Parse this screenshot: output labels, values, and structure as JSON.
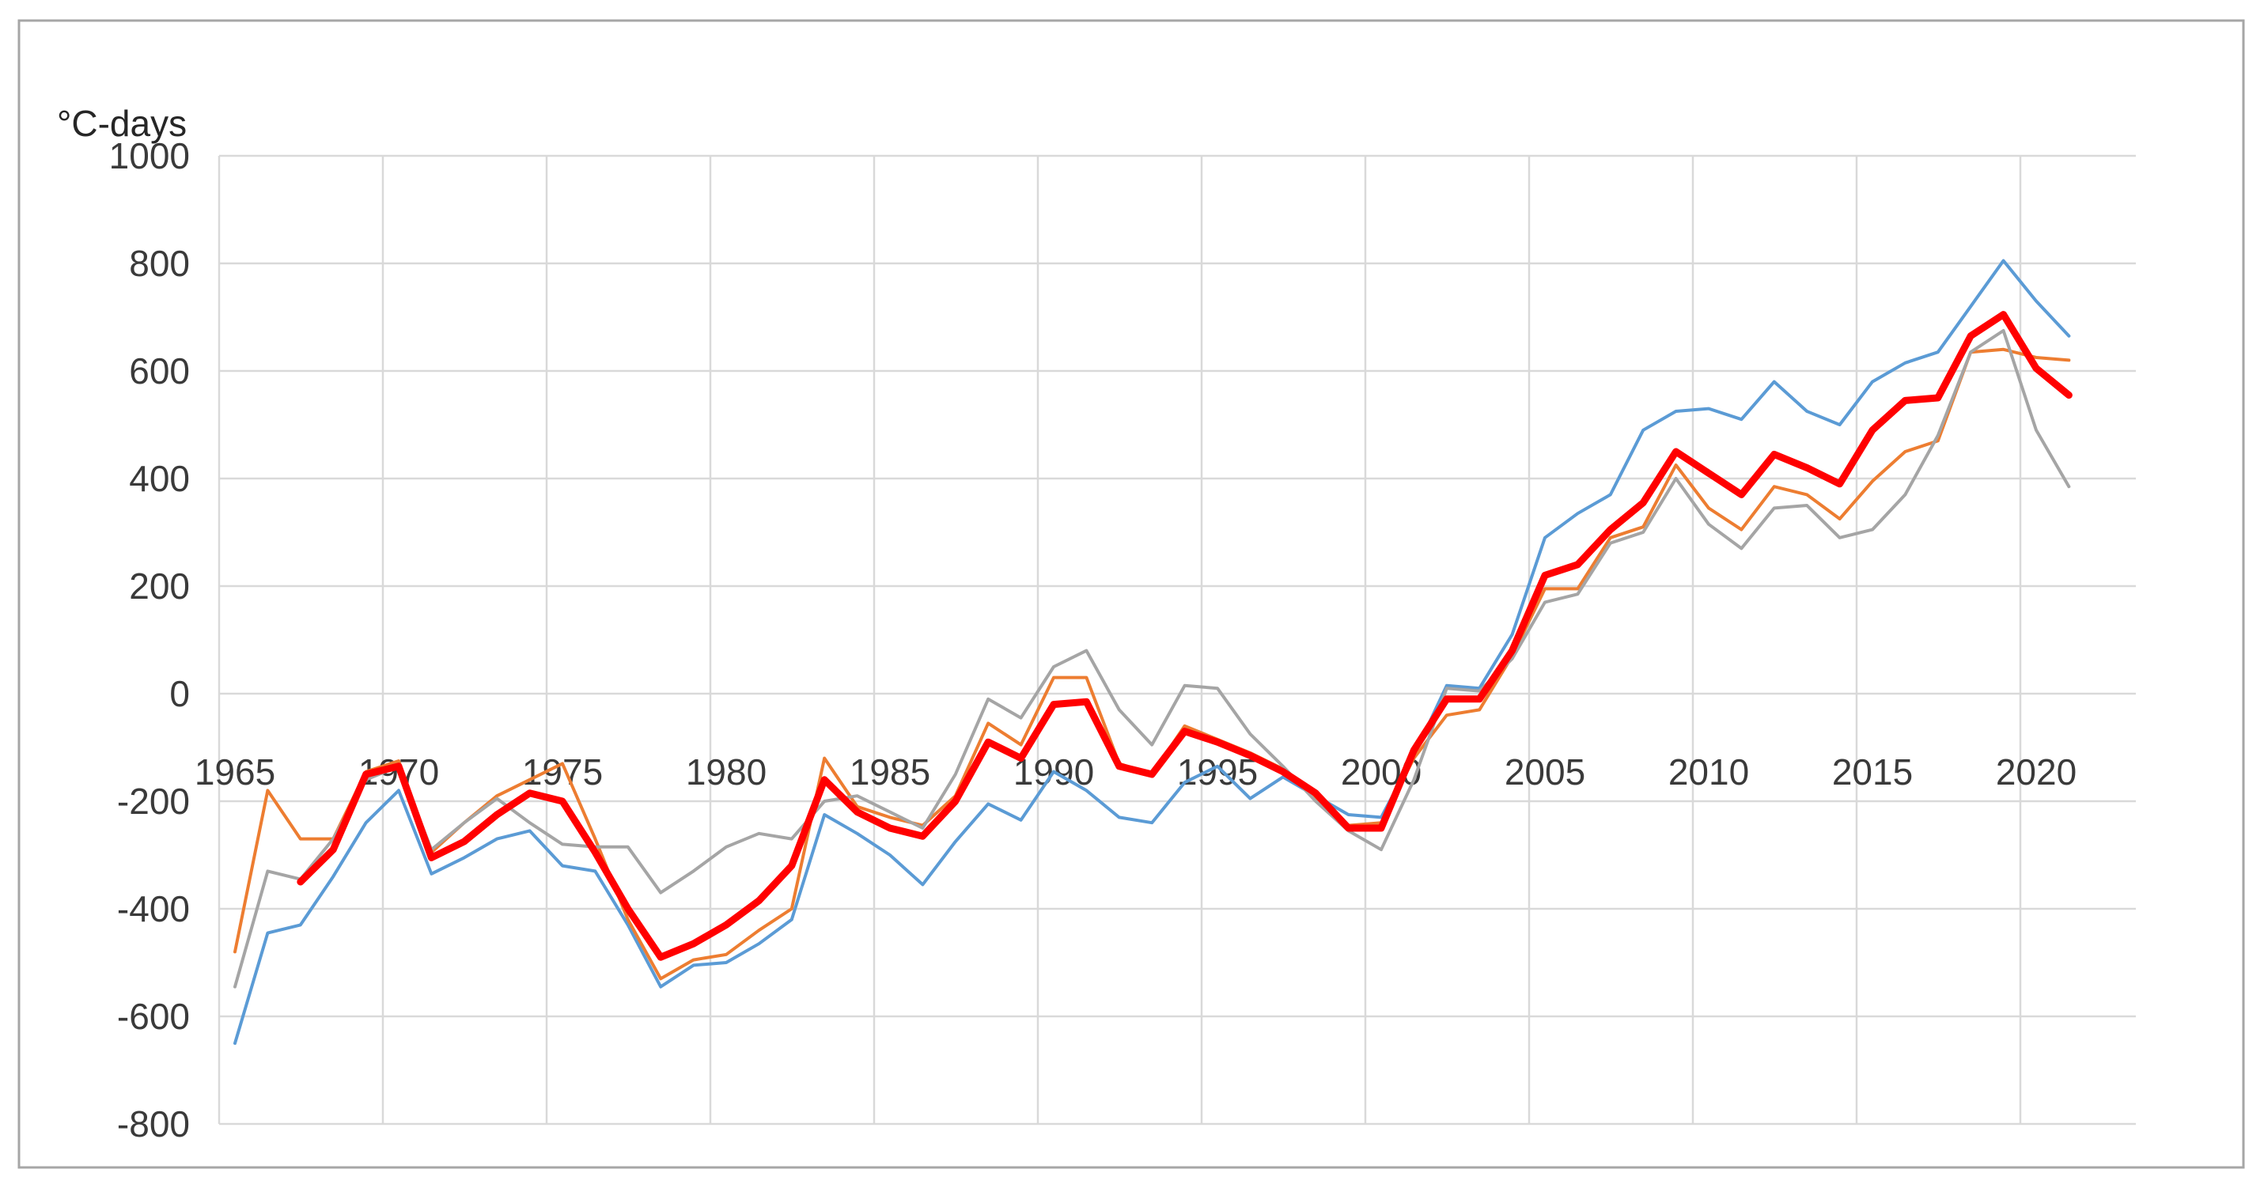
{
  "chart_data": {
    "type": "line",
    "title": "",
    "ylabel": "°C-days",
    "xlabel": "",
    "grid": true,
    "legend": "none",
    "ylim": [
      -800,
      1000
    ],
    "yticks": [
      1000,
      800,
      600,
      400,
      200,
      0,
      -200,
      -400,
      -600,
      -800
    ],
    "xticks": [
      1965,
      1970,
      1975,
      1980,
      1985,
      1990,
      1995,
      2000,
      2005,
      2010,
      2015,
      2020
    ],
    "x": [
      1965,
      1966,
      1967,
      1968,
      1969,
      1970,
      1971,
      1972,
      1973,
      1974,
      1975,
      1976,
      1977,
      1978,
      1979,
      1980,
      1981,
      1982,
      1983,
      1984,
      1985,
      1986,
      1987,
      1988,
      1989,
      1990,
      1991,
      1992,
      1993,
      1994,
      1995,
      1996,
      1997,
      1998,
      1999,
      2000,
      2001,
      2002,
      2003,
      2004,
      2005,
      2006,
      2007,
      2008,
      2009,
      2010,
      2011,
      2012,
      2013,
      2014,
      2015,
      2016,
      2017,
      2018,
      2019,
      2020,
      2021
    ],
    "series": [
      {
        "id": "series-blue",
        "color": "#5B9BD5",
        "width": 4,
        "values": [
          -650,
          -445,
          -430,
          -340,
          -240,
          -180,
          -335,
          -305,
          -270,
          -255,
          -320,
          -330,
          -430,
          -545,
          -505,
          -500,
          -465,
          -420,
          -225,
          -260,
          -300,
          -355,
          -275,
          -205,
          -235,
          -145,
          -180,
          -230,
          -240,
          -165,
          -135,
          -195,
          -155,
          -190,
          -225,
          -230,
          -115,
          15,
          10,
          110,
          290,
          335,
          370,
          490,
          525,
          530,
          510,
          580,
          525,
          500,
          580,
          615,
          635,
          720,
          805,
          730,
          665
        ]
      },
      {
        "id": "series-orange",
        "color": "#ED7D31",
        "width": 4,
        "values": [
          -480,
          -180,
          -270,
          -270,
          -145,
          -125,
          -295,
          -240,
          -190,
          -160,
          -130,
          -270,
          -420,
          -530,
          -495,
          -485,
          -440,
          -400,
          -120,
          -210,
          -230,
          -245,
          -190,
          -55,
          -95,
          30,
          30,
          -130,
          -150,
          -60,
          -85,
          -110,
          -140,
          -195,
          -245,
          -240,
          -120,
          -40,
          -30,
          70,
          195,
          195,
          290,
          310,
          425,
          345,
          305,
          385,
          370,
          325,
          395,
          450,
          470,
          635,
          640,
          625,
          620
        ]
      },
      {
        "id": "series-gray",
        "color": "#A5A5A5",
        "width": 4,
        "values": [
          -545,
          -330,
          -345,
          -270,
          -160,
          -135,
          -290,
          -240,
          -195,
          -240,
          -280,
          -285,
          -285,
          -370,
          -330,
          -285,
          -260,
          -270,
          -200,
          -190,
          -220,
          -250,
          -150,
          -10,
          -45,
          50,
          80,
          -30,
          -95,
          15,
          10,
          -75,
          -135,
          -200,
          -255,
          -290,
          -160,
          10,
          5,
          65,
          170,
          185,
          280,
          300,
          400,
          315,
          270,
          345,
          350,
          290,
          305,
          370,
          480,
          635,
          675,
          490,
          385
        ]
      },
      {
        "id": "series-red",
        "color": "#FF0000",
        "width": 9,
        "values": [
          null,
          null,
          -350,
          -290,
          -150,
          -135,
          -305,
          -275,
          -225,
          -185,
          -200,
          -295,
          -400,
          -490,
          -465,
          -430,
          -385,
          -320,
          -160,
          -220,
          -250,
          -265,
          -200,
          -90,
          -120,
          -20,
          -15,
          -135,
          -150,
          -70,
          -90,
          -115,
          -145,
          -185,
          -250,
          -250,
          -105,
          -10,
          -10,
          80,
          220,
          240,
          305,
          355,
          450,
          410,
          370,
          445,
          420,
          390,
          490,
          545,
          550,
          665,
          705,
          605,
          555
        ]
      }
    ]
  },
  "colors": {
    "gridline": "#D9D9D9",
    "frame_border": "#A6A6A6",
    "tick_text": "#3a3a3a"
  }
}
